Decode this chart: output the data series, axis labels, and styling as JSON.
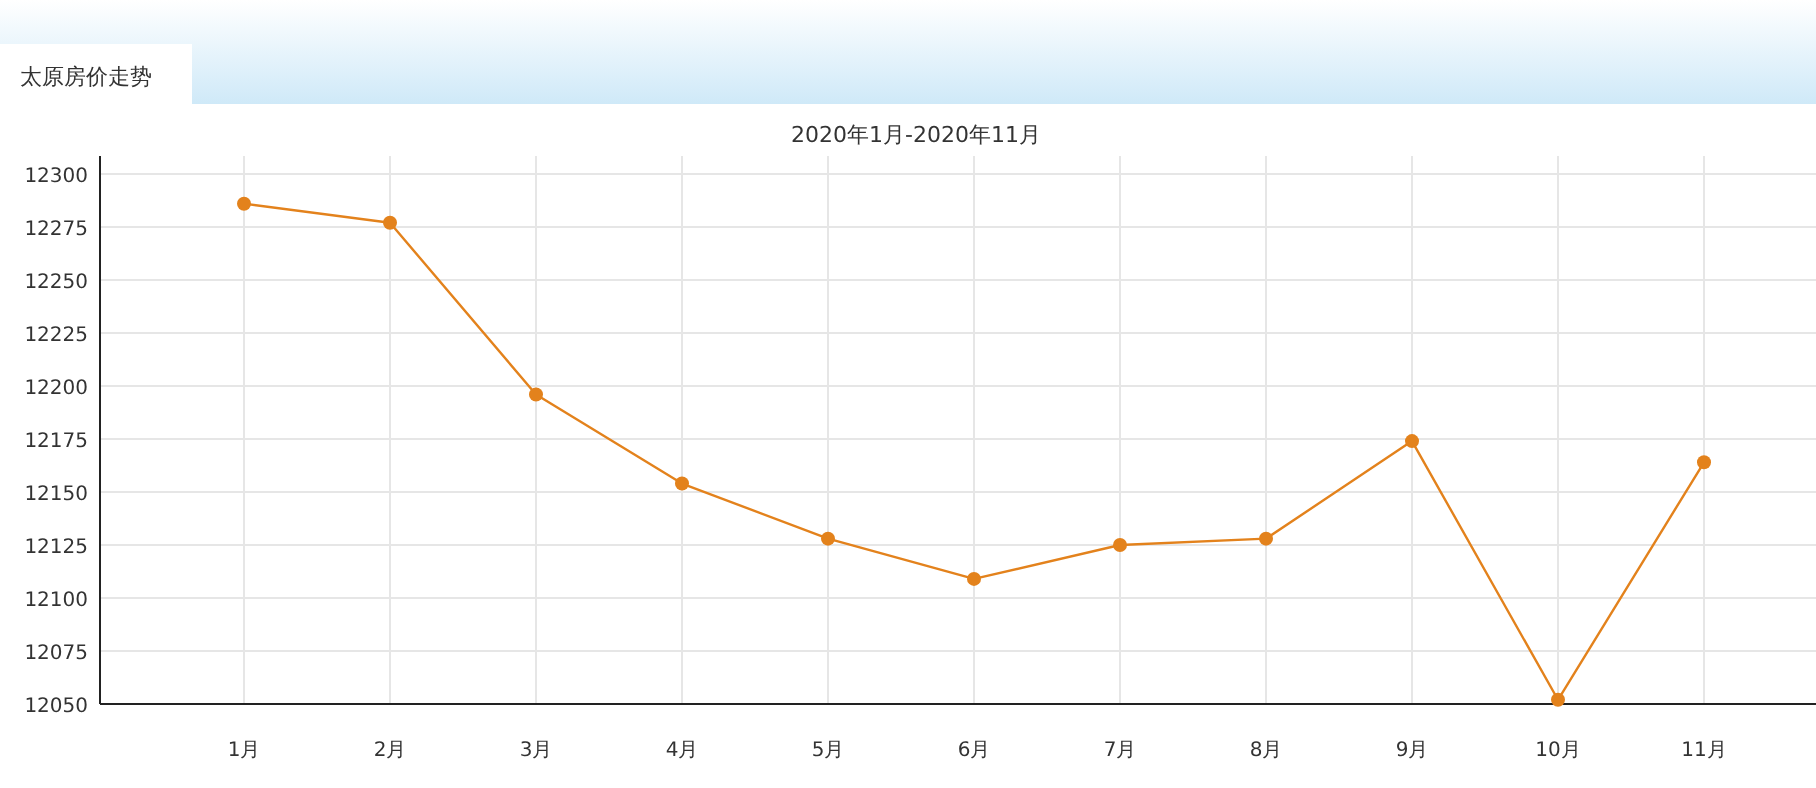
{
  "chart_data": {
    "type": "line",
    "title": "太原房价走势",
    "subtitle": "2020年1月-2020年11月",
    "categories": [
      "1月",
      "2月",
      "3月",
      "4月",
      "5月",
      "6月",
      "7月",
      "8月",
      "9月",
      "10月",
      "11月"
    ],
    "series": [
      {
        "color": "#e3821c",
        "values": [
          12286,
          12277,
          12196,
          12154,
          12128,
          12109,
          12125,
          12128,
          12174,
          12052,
          12164
        ]
      }
    ],
    "ylim": [
      12050,
      12300
    ],
    "yticks": [
      12050,
      12075,
      12100,
      12125,
      12150,
      12175,
      12200,
      12225,
      12250,
      12275,
      12300
    ],
    "grid": true,
    "marker": "circle",
    "line_style": "solid"
  }
}
